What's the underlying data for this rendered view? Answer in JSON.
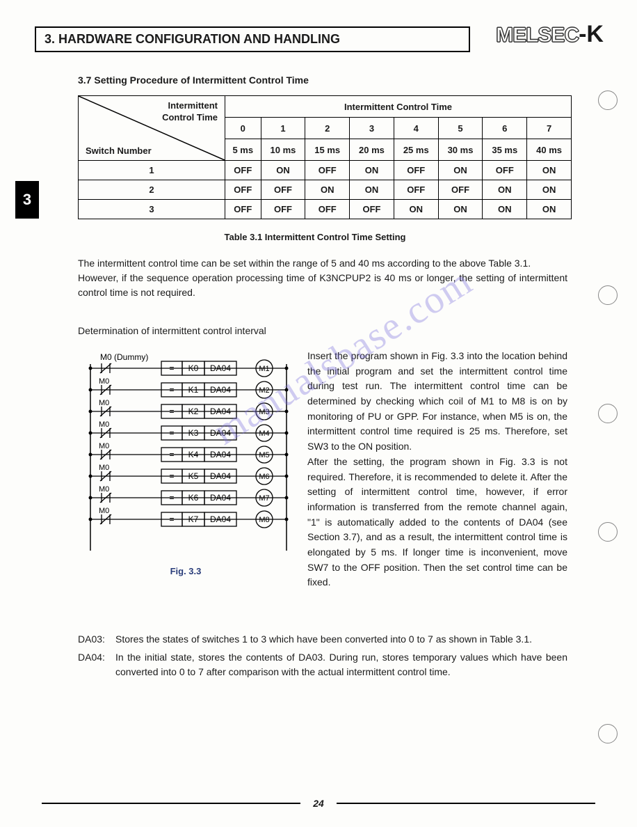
{
  "header": "3. HARDWARE CONFIGURATION AND HANDLING",
  "logo_outline": "MELSEC",
  "logo_suffix": "-K",
  "chapter_tab": "3",
  "section_title": "3.7 Setting Procedure of Intermittent Control Time",
  "table": {
    "corner_top": "Intermittent\nControl Time",
    "corner_bottom": "Switch Number",
    "group_header": "Intermittent Control Time",
    "col_nums": [
      "0",
      "1",
      "2",
      "3",
      "4",
      "5",
      "6",
      "7"
    ],
    "col_units": [
      "5 ms",
      "10 ms",
      "15 ms",
      "20 ms",
      "25 ms",
      "30 ms",
      "35 ms",
      "40 ms"
    ],
    "rows": [
      {
        "label": "1",
        "cells": [
          "OFF",
          "ON",
          "OFF",
          "ON",
          "OFF",
          "ON",
          "OFF",
          "ON"
        ]
      },
      {
        "label": "2",
        "cells": [
          "OFF",
          "OFF",
          "ON",
          "ON",
          "OFF",
          "OFF",
          "ON",
          "ON"
        ]
      },
      {
        "label": "3",
        "cells": [
          "OFF",
          "OFF",
          "OFF",
          "OFF",
          "ON",
          "ON",
          "ON",
          "ON"
        ]
      }
    ],
    "caption": "Table 3.1  Intermittent Control Time Setting"
  },
  "para1a": "The intermittent control time can be set within the range of 5 and 40 ms according to the above Table 3.1.",
  "para1b": "However, if the sequence operation processing time of K3NCPUP2 is 40 ms or longer, the setting of intermittent control time is not required.",
  "subhead": "Determination of intermittent control interval",
  "ladder": {
    "top_label": "M0 (Dummy)",
    "rail_label": "M0",
    "rungs": [
      {
        "k": "K0",
        "d": "DA04",
        "m": "M1"
      },
      {
        "k": "K1",
        "d": "DA04",
        "m": "M2"
      },
      {
        "k": "K2",
        "d": "DA04",
        "m": "M3"
      },
      {
        "k": "K3",
        "d": "DA04",
        "m": "M4"
      },
      {
        "k": "K4",
        "d": "DA04",
        "m": "M5"
      },
      {
        "k": "K5",
        "d": "DA04",
        "m": "M6"
      },
      {
        "k": "K6",
        "d": "DA04",
        "m": "M7"
      },
      {
        "k": "K7",
        "d": "DA04",
        "m": "M8"
      }
    ],
    "caption": "Fig. 3.3"
  },
  "para2": "Insert the program shown in Fig. 3.3 into the location behind the initial program and set the intermittent control time during test run. The intermittent control time can be determined by checking which coil of M1 to M8 is on by monitoring of PU or GPP. For instance, when M5 is on, the intermittent control time required is 25 ms. Therefore, set SW3 to the ON position.",
  "para3": "After the setting, the program shown in Fig. 3.3 is not required. Therefore, it is recommended to delete it. After the setting of intermittent control time, however, if error information is transferred from the remote channel again, \"1\" is automatically added to the contents of DA04 (see Section 3.7), and as a result, the intermittent control time is elongated by 5 ms. If longer time is inconvenient, move SW7 to the OFF position. Then the set control time can be fixed.",
  "da": [
    {
      "tag": "DA03:",
      "text": "Stores the states of switches 1 to 3 which have been converted into 0 to 7 as shown in Table 3.1."
    },
    {
      "tag": "DA04:",
      "text": "In the initial state, stores the contents of DA03. During run, stores temporary values which have been converted into 0 to 7 after comparison with the actual intermittent control time."
    }
  ],
  "page_number": "24",
  "watermark": "manualsbase.com"
}
